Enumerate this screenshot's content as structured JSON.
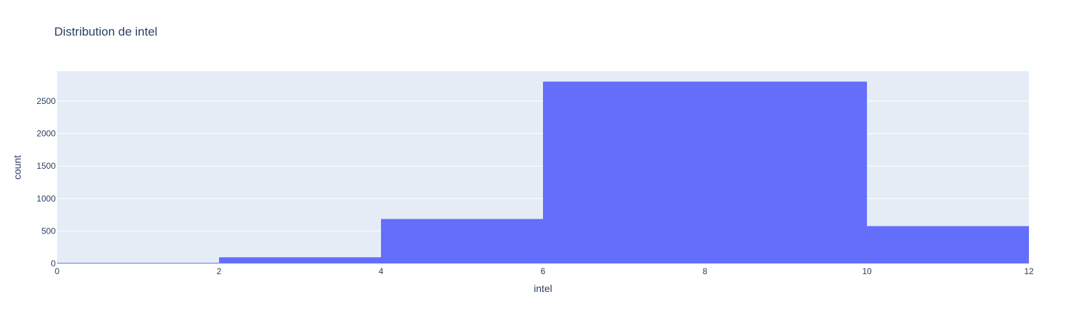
{
  "chart_data": {
    "type": "bar",
    "title": "Distribution de intel",
    "xlabel": "intel",
    "ylabel": "count",
    "bins": [
      {
        "start": 0,
        "end": 2,
        "count": 9
      },
      {
        "start": 2,
        "end": 4,
        "count": 95
      },
      {
        "start": 4,
        "end": 6,
        "count": 685
      },
      {
        "start": 6,
        "end": 10,
        "count": 2800
      },
      {
        "start": 10,
        "end": 12,
        "count": 575
      }
    ],
    "xlim": [
      0,
      12
    ],
    "ylim": [
      0,
      2960
    ],
    "xticks": [
      0,
      2,
      4,
      6,
      8,
      10,
      12
    ],
    "yticks": [
      0,
      500,
      1000,
      1500,
      2000,
      2500
    ],
    "grid": true,
    "colors": {
      "bar": "#636efa",
      "plot_background": "#e5ecf6",
      "grid": "#ffffff",
      "text": "#2a3f5f"
    }
  }
}
